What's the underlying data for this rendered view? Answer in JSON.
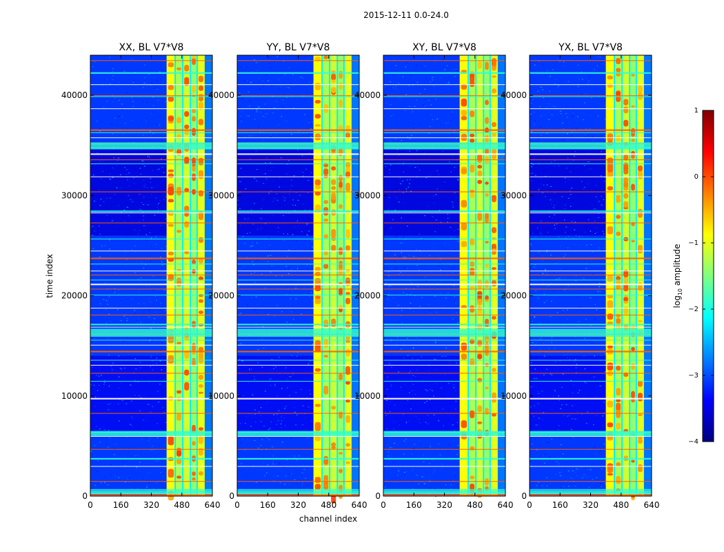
{
  "figure": {
    "suptitle": "2015-12-11 0.0-24.0",
    "xlabel": "channel index",
    "ylabel": "time index"
  },
  "colorbar": {
    "label": "log10 amplitude",
    "label_base": "log",
    "label_sub": "10",
    "label_rest": " amplitude",
    "range": [
      -4,
      1
    ],
    "ticks": [
      1,
      0,
      -1,
      -2,
      -3,
      -4
    ],
    "tick_labels": [
      "1",
      "0",
      "−1",
      "−2",
      "−3",
      "−4"
    ],
    "colormap": "jet",
    "colormap_stops": [
      "#00007f",
      "#0000ff",
      "#007fff",
      "#00ffff",
      "#7fff7f",
      "#ffff00",
      "#ff7f00",
      "#ff0000",
      "#7f0000"
    ]
  },
  "chart_data": [
    {
      "type": "heatmap",
      "title": "XX, BL V7*V8",
      "xlim": [
        0,
        640
      ],
      "ylim": [
        0,
        44000
      ],
      "xticks": [
        0,
        160,
        320,
        480,
        640
      ],
      "xtick_labels": [
        "0",
        "160",
        "320",
        "480",
        "640"
      ],
      "yticks": [
        0,
        10000,
        20000,
        30000,
        40000
      ],
      "ytick_labels": [
        "0",
        "10000",
        "20000",
        "30000",
        "40000"
      ],
      "bright_channel_range": [
        400,
        600
      ],
      "z_range": [
        -4,
        1
      ]
    },
    {
      "type": "heatmap",
      "title": "YY, BL V7*V8",
      "xlim": [
        0,
        640
      ],
      "ylim": [
        0,
        44000
      ],
      "xticks": [
        0,
        160,
        320,
        480,
        640
      ],
      "xtick_labels": [
        "0",
        "160",
        "320",
        "480",
        "640"
      ],
      "yticks": [
        0,
        10000,
        20000,
        30000,
        40000
      ],
      "ytick_labels": [
        "0",
        "10000",
        "20000",
        "30000",
        "40000"
      ],
      "bright_channel_range": [
        400,
        600
      ],
      "z_range": [
        -4,
        1
      ]
    },
    {
      "type": "heatmap",
      "title": "XY, BL V7*V8",
      "xlim": [
        0,
        640
      ],
      "ylim": [
        0,
        44000
      ],
      "xticks": [
        0,
        160,
        320,
        480,
        640
      ],
      "xtick_labels": [
        "0",
        "160",
        "320",
        "480",
        "640"
      ],
      "yticks": [
        0,
        10000,
        20000,
        30000,
        40000
      ],
      "ytick_labels": [
        "0",
        "10000",
        "20000",
        "30000",
        "40000"
      ],
      "bright_channel_range": [
        400,
        600
      ],
      "z_range": [
        -4,
        1
      ]
    },
    {
      "type": "heatmap",
      "title": "YX, BL V7*V8",
      "xlim": [
        0,
        640
      ],
      "ylim": [
        0,
        44000
      ],
      "xticks": [
        0,
        160,
        320,
        480,
        640
      ],
      "xtick_labels": [
        "0",
        "160",
        "320",
        "480",
        "640"
      ],
      "yticks": [
        0,
        10000,
        20000,
        30000,
        40000
      ],
      "ytick_labels": [
        "0",
        "10000",
        "20000",
        "30000",
        "40000"
      ],
      "bright_channel_range": [
        400,
        600
      ],
      "z_range": [
        -4,
        1
      ]
    }
  ]
}
